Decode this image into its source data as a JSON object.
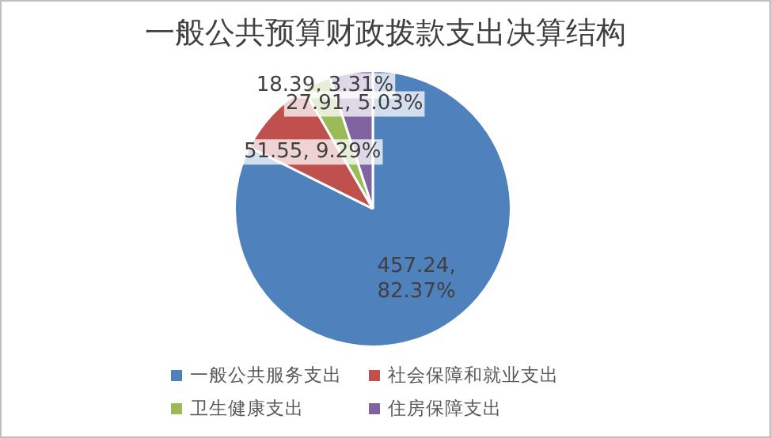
{
  "chart_data": {
    "type": "pie",
    "title": "一般公共预算财政拨款支出决算结构",
    "categories": [
      "一般公共服务支出",
      "社会保障和就业支出",
      "卫生健康支出",
      "住房保障支出"
    ],
    "values": [
      457.24,
      51.55,
      18.39,
      27.91
    ],
    "colors": [
      "#4f81bd",
      "#c0504d",
      "#9bbb59",
      "#8064a2"
    ],
    "value_labels": [
      "457.24, 82.37%",
      "51.55, 9.29%",
      "18.39, 3.31%",
      "27.91, 5.03%"
    ],
    "legend": "bottom"
  }
}
